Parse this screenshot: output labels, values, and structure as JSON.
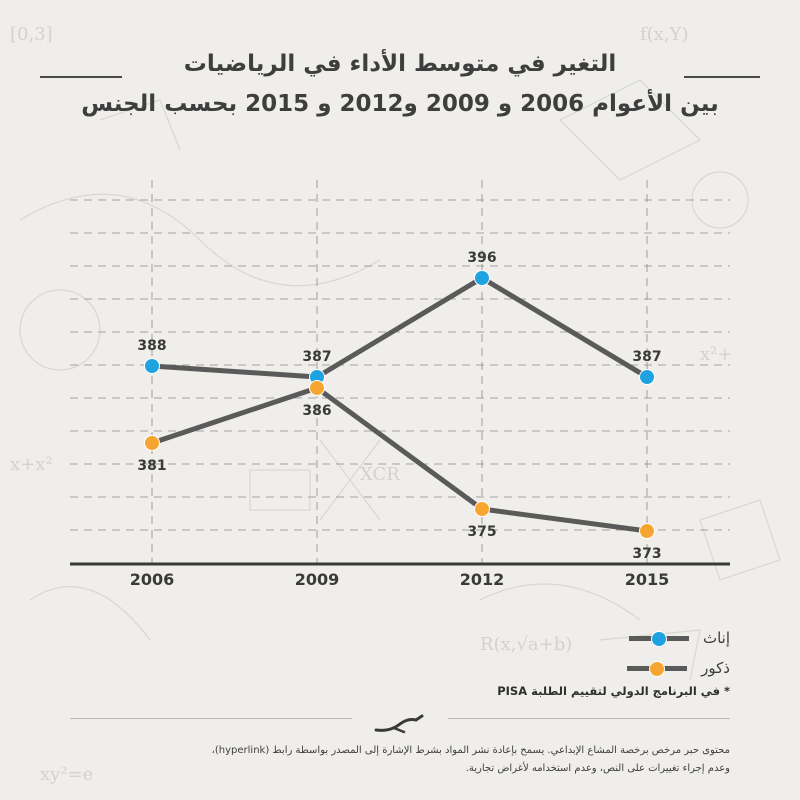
{
  "title": {
    "line1": "التغير في متوسط الأداء في الرياضيات",
    "line2": "بين الأعوام 2006 و 2009 و2012 و 2015 بحسب الجنس"
  },
  "colors": {
    "female": "#1fa2e0",
    "male": "#f6a630",
    "line": "#5a5a5a",
    "axis": "#3a3a3a",
    "grid": "#8a8a8a"
  },
  "chart_data": {
    "type": "line",
    "categories": [
      "2006",
      "2009",
      "2012",
      "2015"
    ],
    "series": [
      {
        "name": "إناث",
        "color": "#1fa2e0",
        "values": [
          388,
          387,
          396,
          387
        ]
      },
      {
        "name": "ذكور",
        "color": "#f6a630",
        "values": [
          381,
          386,
          375,
          373
        ]
      }
    ],
    "ylim": [
      370,
      400
    ],
    "grid": true
  },
  "legend": [
    {
      "label": "إناث",
      "color": "#1fa2e0"
    },
    {
      "label": "ذكور",
      "color": "#f6a630"
    }
  ],
  "note": "* في البرنامج الدولي لتقييم الطلبة PISA",
  "footer": {
    "line1": "محتوى حبر مرخص برخصة المشاع الإبداعي. يسمح بإعادة نشر المواد بشرط الإشارة إلى المصدر بواسطة رابط (hyperlink)،",
    "line2": "وعدم إجراء تغييرات على النص، وعدم استخدامه لأغراض تجارية."
  }
}
